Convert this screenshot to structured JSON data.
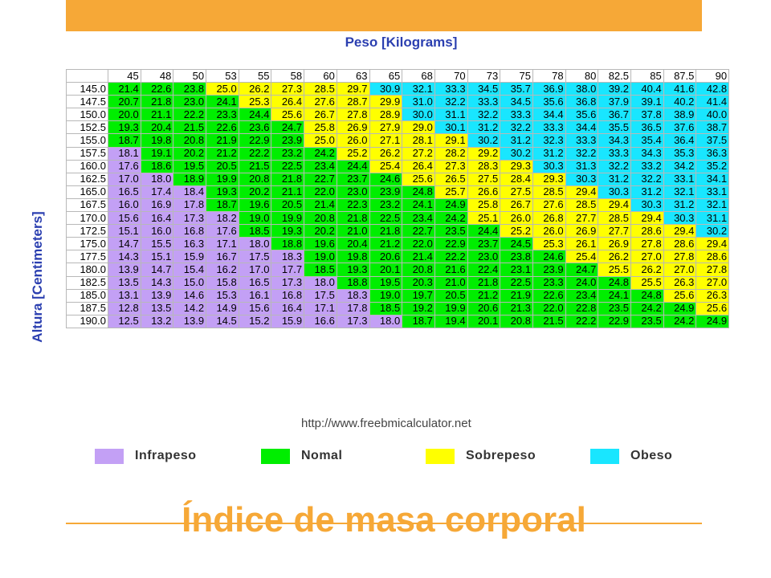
{
  "header": {
    "bar_color": "#f6a837"
  },
  "chart_data": {
    "type": "heatmap",
    "title": "Índice de masa corporal",
    "xlabel": "Peso [Kilograms]",
    "ylabel": "Altura [Centimeters]",
    "x": [
      "45",
      "48",
      "50",
      "53",
      "55",
      "58",
      "60",
      "63",
      "65",
      "68",
      "70",
      "73",
      "75",
      "78",
      "80",
      "82.5",
      "85",
      "87.5",
      "90"
    ],
    "y": [
      "145.0",
      "147.5",
      "150.0",
      "152.5",
      "155.0",
      "157.5",
      "160.0",
      "162.5",
      "165.0",
      "167.5",
      "170.0",
      "172.5",
      "175.0",
      "177.5",
      "180.0",
      "182.5",
      "185.0",
      "187.5",
      "190.0"
    ],
    "values": [
      [
        "21.4",
        "22.6",
        "23.8",
        "25.0",
        "26.2",
        "27.3",
        "28.5",
        "29.7",
        "30.9",
        "32.1",
        "33.3",
        "34.5",
        "35.7",
        "36.9",
        "38.0",
        "39.2",
        "40.4",
        "41.6",
        "42.8"
      ],
      [
        "20.7",
        "21.8",
        "23.0",
        "24.1",
        "25.3",
        "26.4",
        "27.6",
        "28.7",
        "29.9",
        "31.0",
        "32.2",
        "33.3",
        "34.5",
        "35.6",
        "36.8",
        "37.9",
        "39.1",
        "40.2",
        "41.4"
      ],
      [
        "20.0",
        "21.1",
        "22.2",
        "23.3",
        "24.4",
        "25.6",
        "26.7",
        "27.8",
        "28.9",
        "30.0",
        "31.1",
        "32.2",
        "33.3",
        "34.4",
        "35.6",
        "36.7",
        "37.8",
        "38.9",
        "40.0"
      ],
      [
        "19.3",
        "20.4",
        "21.5",
        "22.6",
        "23.6",
        "24.7",
        "25.8",
        "26.9",
        "27.9",
        "29.0",
        "30.1",
        "31.2",
        "32.2",
        "33.3",
        "34.4",
        "35.5",
        "36.5",
        "37.6",
        "38.7"
      ],
      [
        "18.7",
        "19.8",
        "20.8",
        "21.9",
        "22.9",
        "23.9",
        "25.0",
        "26.0",
        "27.1",
        "28.1",
        "29.1",
        "30.2",
        "31.2",
        "32.3",
        "33.3",
        "34.3",
        "35.4",
        "36.4",
        "37.5"
      ],
      [
        "18.1",
        "19.1",
        "20.2",
        "21.2",
        "22.2",
        "23.2",
        "24.2",
        "25.2",
        "26.2",
        "27.2",
        "28.2",
        "29.2",
        "30.2",
        "31.2",
        "32.2",
        "33.3",
        "34.3",
        "35.3",
        "36.3"
      ],
      [
        "17.6",
        "18.6",
        "19.5",
        "20.5",
        "21.5",
        "22.5",
        "23.4",
        "24.4",
        "25.4",
        "26.4",
        "27.3",
        "28.3",
        "29.3",
        "30.3",
        "31.3",
        "32.2",
        "33.2",
        "34.2",
        "35.2"
      ],
      [
        "17.0",
        "18.0",
        "18.9",
        "19.9",
        "20.8",
        "21.8",
        "22.7",
        "23.7",
        "24.6",
        "25.6",
        "26.5",
        "27.5",
        "28.4",
        "29.3",
        "30.3",
        "31.2",
        "32.2",
        "33.1",
        "34.1"
      ],
      [
        "16.5",
        "17.4",
        "18.4",
        "19.3",
        "20.2",
        "21.1",
        "22.0",
        "23.0",
        "23.9",
        "24.8",
        "25.7",
        "26.6",
        "27.5",
        "28.5",
        "29.4",
        "30.3",
        "31.2",
        "32.1",
        "33.1"
      ],
      [
        "16.0",
        "16.9",
        "17.8",
        "18.7",
        "19.6",
        "20.5",
        "21.4",
        "22.3",
        "23.2",
        "24.1",
        "24.9",
        "25.8",
        "26.7",
        "27.6",
        "28.5",
        "29.4",
        "30.3",
        "31.2",
        "32.1"
      ],
      [
        "15.6",
        "16.4",
        "17.3",
        "18.2",
        "19.0",
        "19.9",
        "20.8",
        "21.8",
        "22.5",
        "23.4",
        "24.2",
        "25.1",
        "26.0",
        "26.8",
        "27.7",
        "28.5",
        "29.4",
        "30.3",
        "31.1"
      ],
      [
        "15.1",
        "16.0",
        "16.8",
        "17.6",
        "18.5",
        "19.3",
        "20.2",
        "21.0",
        "21.8",
        "22.7",
        "23.5",
        "24.4",
        "25.2",
        "26.0",
        "26.9",
        "27.7",
        "28.6",
        "29.4",
        "30.2"
      ],
      [
        "14.7",
        "15.5",
        "16.3",
        "17.1",
        "18.0",
        "18.8",
        "19.6",
        "20.4",
        "21.2",
        "22.0",
        "22.9",
        "23.7",
        "24.5",
        "25.3",
        "26.1",
        "26.9",
        "27.8",
        "28.6",
        "29.4"
      ],
      [
        "14.3",
        "15.1",
        "15.9",
        "16.7",
        "17.5",
        "18.3",
        "19.0",
        "19.8",
        "20.6",
        "21.4",
        "22.2",
        "23.0",
        "23.8",
        "24.6",
        "25.4",
        "26.2",
        "27.0",
        "27.8",
        "28.6"
      ],
      [
        "13.9",
        "14.7",
        "15.4",
        "16.2",
        "17.0",
        "17.7",
        "18.5",
        "19.3",
        "20.1",
        "20.8",
        "21.6",
        "22.4",
        "23.1",
        "23.9",
        "24.7",
        "25.5",
        "26.2",
        "27.0",
        "27.8"
      ],
      [
        "13.5",
        "14.3",
        "15.0",
        "15.8",
        "16.5",
        "17.3",
        "18.0",
        "18.8",
        "19.5",
        "20.3",
        "21.0",
        "21.8",
        "22.5",
        "23.3",
        "24.0",
        "24.8",
        "25.5",
        "26.3",
        "27.0"
      ],
      [
        "13.1",
        "13.9",
        "14.6",
        "15.3",
        "16.1",
        "16.8",
        "17.5",
        "18.3",
        "19.0",
        "19.7",
        "20.5",
        "21.2",
        "21.9",
        "22.6",
        "23.4",
        "24.1",
        "24.8",
        "25.6",
        "26.3"
      ],
      [
        "12.8",
        "13.5",
        "14.2",
        "14.9",
        "15.6",
        "16.4",
        "17.1",
        "17.8",
        "18.5",
        "19.2",
        "19.9",
        "20.6",
        "21.3",
        "22.0",
        "22.8",
        "23.5",
        "24.2",
        "24.9",
        "25.6"
      ],
      [
        "12.5",
        "13.2",
        "13.9",
        "14.5",
        "15.2",
        "15.9",
        "16.6",
        "17.3",
        "18.0",
        "18.7",
        "19.4",
        "20.1",
        "20.8",
        "21.5",
        "22.2",
        "22.9",
        "23.5",
        "24.2",
        "24.9"
      ]
    ],
    "categories_legend": [
      {
        "label": "Infrapeso",
        "color": "#c3a0f5"
      },
      {
        "label": "Nomal",
        "color": "#00ee00"
      },
      {
        "label": "Sobrepeso",
        "color": "#ffff00"
      },
      {
        "label": "Obeso",
        "color": "#19e6ff"
      }
    ],
    "thresholds": [
      18.5,
      25,
      30
    ],
    "legend_position": "bottom"
  },
  "source": "http://www.freebmicalculator.net",
  "colors": {
    "accent": "#f6a837",
    "axis_title": "#2b3fb0"
  }
}
